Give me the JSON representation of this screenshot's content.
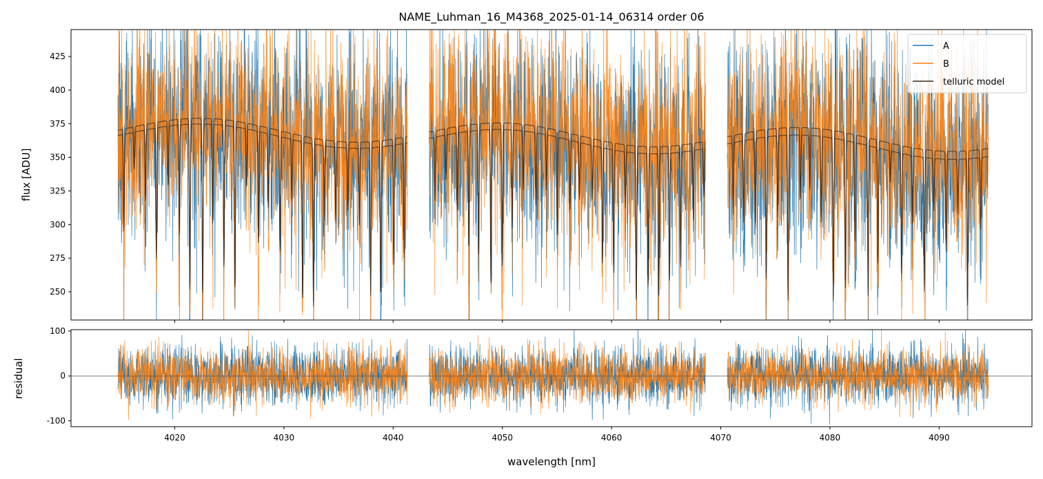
{
  "chart_data": [
    {
      "type": "line",
      "panel": "main",
      "title": "NAME_Luhman_16_M4368_2025-01-14_06314  order 06",
      "xlabel": "",
      "ylabel": "flux [ADU]",
      "xlim": [
        4010.5,
        4098.5
      ],
      "ylim": [
        229,
        445
      ],
      "y_ticks": [
        250,
        275,
        300,
        325,
        350,
        375,
        400,
        425
      ],
      "x_ticks": [
        4020,
        4030,
        4040,
        4050,
        4060,
        4070,
        4080,
        4090
      ],
      "x_tick_labels_visible": false,
      "legend": {
        "position": "top-right",
        "entries": [
          "A",
          "B",
          "telluric model"
        ]
      },
      "grid": false,
      "segments": [
        [
          4014.8,
          4041.3
        ],
        [
          4043.3,
          4068.6
        ],
        [
          4070.6,
          4094.5
        ]
      ],
      "series": [
        {
          "name": "A",
          "color": "#1f77b4",
          "continuum_start": 368,
          "continuum_end": 356,
          "noise_sigma": 38
        },
        {
          "name": "B",
          "color": "#ff7f0e",
          "continuum_start": 372,
          "continuum_end": 362,
          "noise_sigma": 38
        },
        {
          "name": "telluric model",
          "color": "#3d2a1c",
          "model_A_level": [
            376,
            362,
            356,
            347,
            386,
            355,
            368
          ],
          "model_B_level": [
            381,
            362,
            363,
            355,
            373,
            351,
            371
          ]
        }
      ]
    },
    {
      "type": "line",
      "panel": "residual",
      "title": "",
      "xlabel": "wavelength [nm]",
      "ylabel": "residual",
      "xlim": [
        4010.5,
        4098.5
      ],
      "ylim": [
        -113,
        103
      ],
      "y_ticks": [
        -100,
        0,
        100
      ],
      "x_ticks": [
        4020,
        4030,
        4040,
        4050,
        4060,
        4070,
        4080,
        4090
      ],
      "zero_line": true,
      "grid": false,
      "series": [
        {
          "name": "A",
          "color": "#1f77b4",
          "noise_sigma": 32
        },
        {
          "name": "B",
          "color": "#ff7f0e",
          "noise_sigma": 30
        }
      ]
    }
  ]
}
